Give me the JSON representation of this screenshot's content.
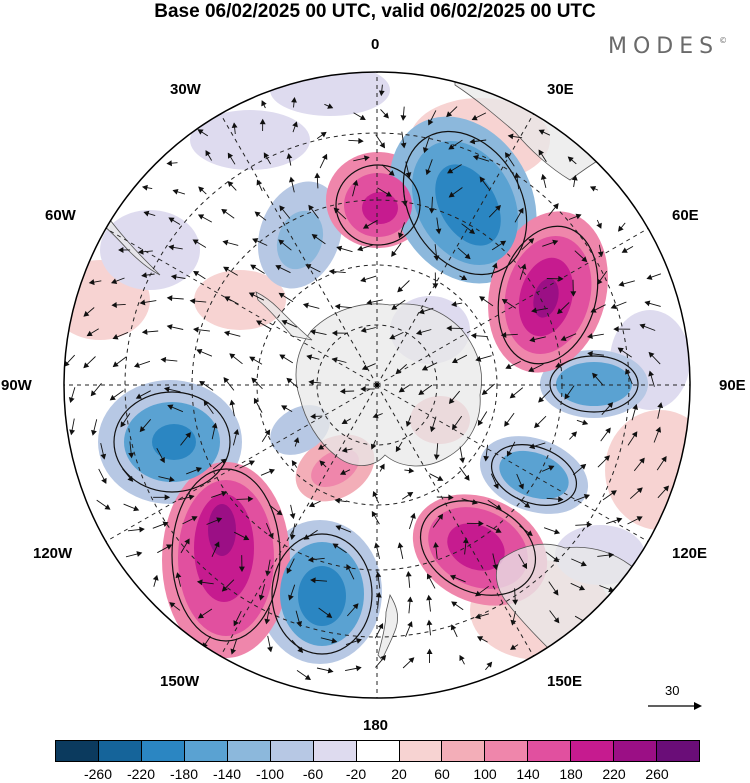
{
  "title": "Base 06/02/2025 00 UTC, valid 06/02/2025 00 UTC",
  "brand": {
    "text": "MODES",
    "mark": "©"
  },
  "longitude_labels": {
    "lon_0": "0",
    "lon_30e": "30E",
    "lon_60e": "60E",
    "lon_90e": "90E",
    "lon_120e": "120E",
    "lon_150e": "150E",
    "lon_180": "180",
    "lon_150w": "150W",
    "lon_120w": "120W",
    "lon_90w": "90W",
    "lon_60w": "60W",
    "lon_30w": "30W"
  },
  "reference_vector": {
    "label": "30"
  },
  "colorbar": {
    "colors": [
      "#0b3a5e",
      "#15649a",
      "#2b86c2",
      "#5aa2d2",
      "#8cb8dc",
      "#b7c8e4",
      "#dedbef",
      "#ffffff",
      "#f7d3d2",
      "#f3aeb8",
      "#ef86ab",
      "#e1509f",
      "#c61b8f",
      "#9b0f85",
      "#6a0d78"
    ],
    "ticks": [
      "-260",
      "-220",
      "-180",
      "-140",
      "-100",
      "-60",
      "-20",
      "20",
      "60",
      "100",
      "140",
      "180",
      "220",
      "260"
    ]
  }
}
